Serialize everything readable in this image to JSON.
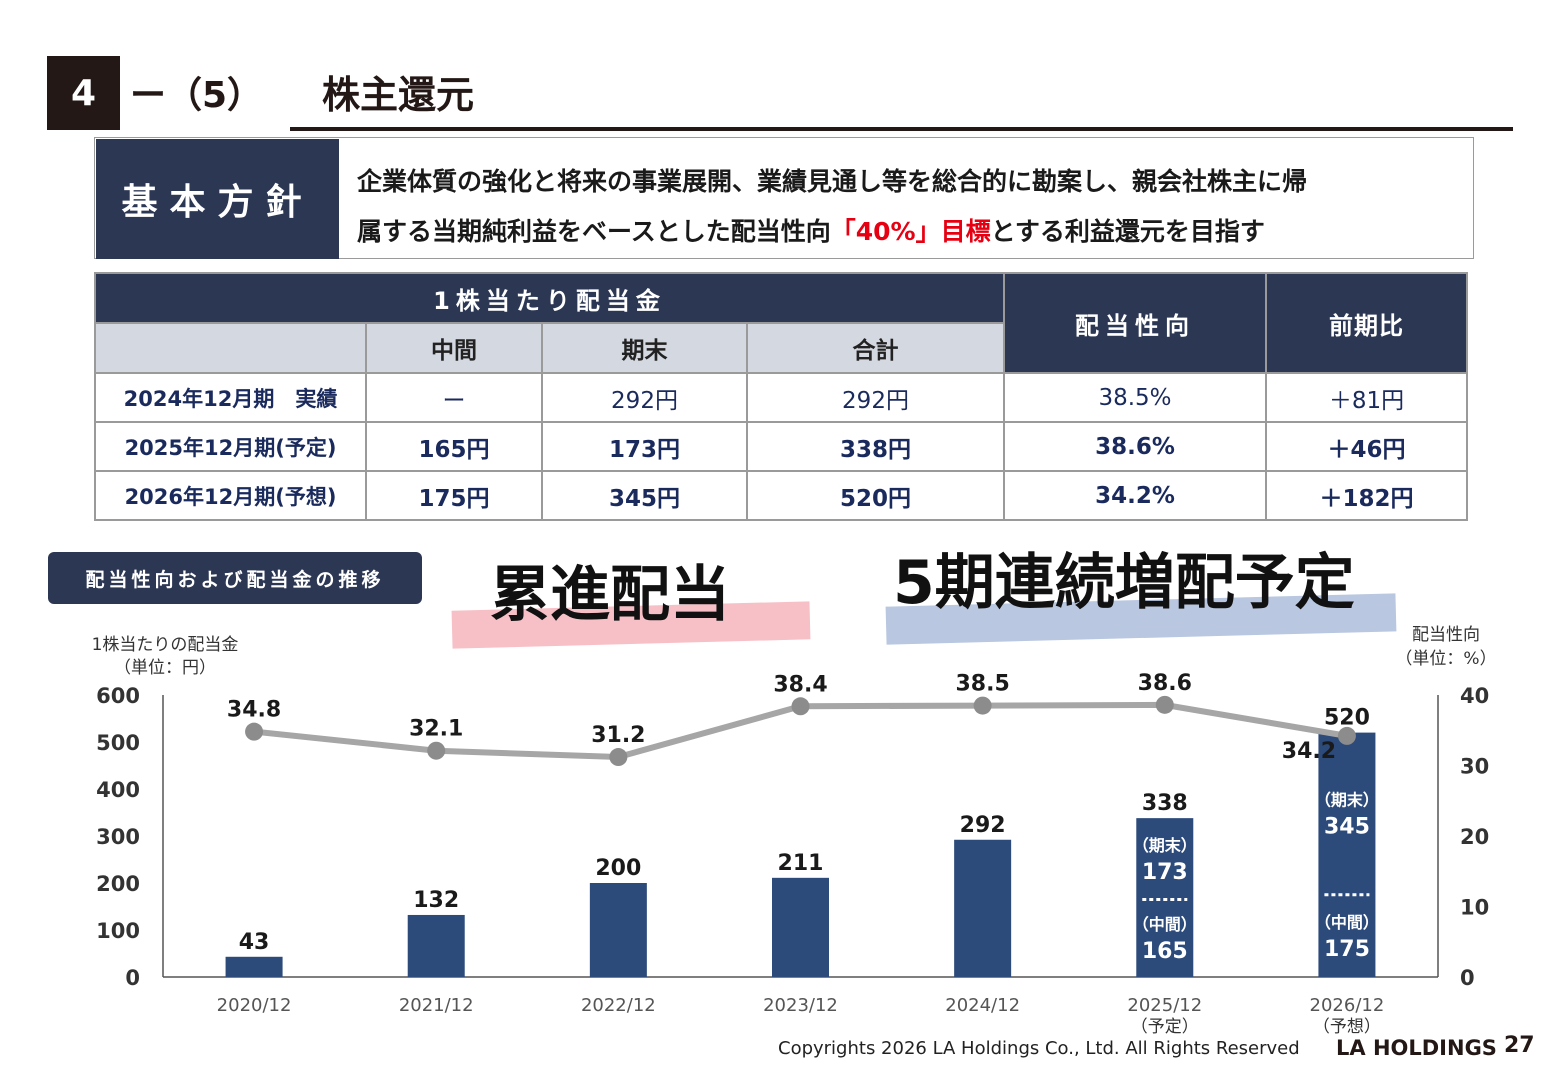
{
  "header": {
    "number": "4",
    "subsection": "ー（5）",
    "title": "株主還元"
  },
  "policy": {
    "label": "基本方針",
    "line1": "企業体質の強化と将来の事業展開、業績見通し等を総合的に勘案し、親会社株主に帰",
    "line2_pre": "属する当期純利益をベースとした配当性向",
    "line2_red": "「40%」目標",
    "line2_post": "とする利益還元を目指す"
  },
  "table": {
    "group_header": "1株当たり配当金",
    "col_payout": "配当性向",
    "col_yoy": "前期比",
    "sub_interim": "中間",
    "sub_yearend": "期末",
    "sub_total": "合計",
    "rows": [
      {
        "label": "2024年12月期　実績",
        "interim": "ー",
        "yearend": "292円",
        "total": "292円",
        "payout": "38.5%",
        "yoy": "＋81円"
      },
      {
        "label": "2025年12月期(予定)",
        "interim": "165円",
        "yearend": "173円",
        "total": "338円",
        "payout": "38.6%",
        "yoy": "＋46円"
      },
      {
        "label": "2026年12月期(予想)",
        "interim": "175円",
        "yearend": "345円",
        "total": "520円",
        "payout": "34.2%",
        "yoy": "＋182円"
      }
    ]
  },
  "chart_heading": {
    "pill": "配当性向および配当金の推移",
    "callout_left": "累進配当",
    "callout_right": "5期連続増配予定"
  },
  "chart_data": {
    "type": "bar",
    "left_axis_label_1": "1株当たりの配当金",
    "left_axis_label_2": "（単位：円）",
    "right_axis_label_1": "配当性向",
    "right_axis_label_2": "（単位：%）",
    "categories": [
      "2020/12",
      "2021/12",
      "2022/12",
      "2023/12",
      "2024/12",
      "2025/12",
      "2026/12"
    ],
    "category_notes": [
      "",
      "",
      "",
      "",
      "",
      "（予定）",
      "（予想）"
    ],
    "dividend": [
      43,
      132,
      200,
      211,
      292,
      338,
      520
    ],
    "dividend_split": {
      "2025/12": {
        "interim": 165,
        "yearend": 173,
        "interim_label": "（中間）",
        "yearend_label": "（期末）"
      },
      "2026/12": {
        "interim": 175,
        "yearend": 345,
        "interim_label": "（中間）",
        "yearend_label": "（期末）"
      }
    },
    "payout_ratio": [
      34.8,
      32.1,
      31.2,
      38.4,
      38.5,
      38.6,
      34.2
    ],
    "left_ylim": [
      0,
      600
    ],
    "left_ticks": [
      0,
      100,
      200,
      300,
      400,
      500,
      600
    ],
    "right_ylim": [
      0,
      40
    ],
    "right_ticks": [
      0,
      10,
      20,
      30,
      40
    ],
    "bar_color": "#2c4a7a",
    "line_color": "#a6a6a6",
    "marker_color": "#8c8c8c"
  },
  "footer": {
    "copyright": "Copyrights 2026 LA Holdings Co., Ltd.  All Rights Reserved",
    "brand": "LA HOLDINGS",
    "page": "27"
  }
}
